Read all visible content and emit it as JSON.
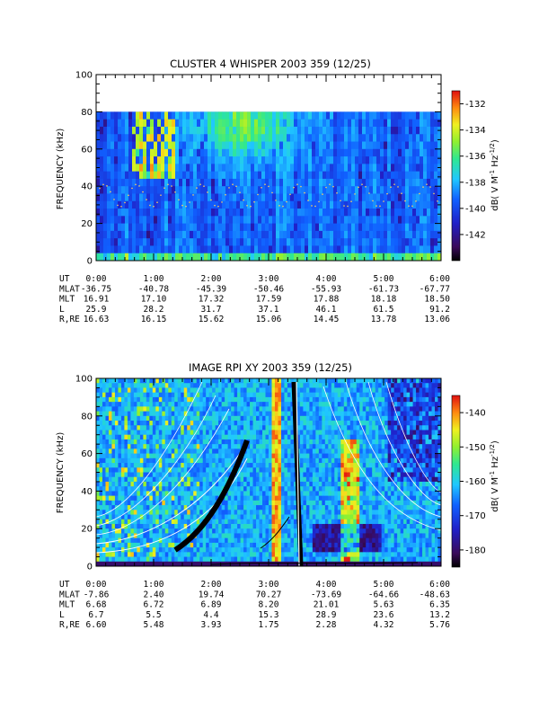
{
  "chart_data": [
    {
      "type": "heatmap",
      "title": "CLUSTER 4 WHISPER 2003 359 (12/25)",
      "ylabel": "FREQUENCY (kHz)",
      "ylim": [
        0,
        100
      ],
      "yticks": [
        0,
        20,
        40,
        60,
        80,
        100
      ],
      "xlim_hours": [
        0,
        6
      ],
      "data_frequency_max_khz": 80,
      "colorbar": {
        "label": "dB( V M⁻¹ Hz⁻¹ᐟ²)",
        "label_parts": [
          "dB( V M",
          "-1",
          " Hz",
          "-1/2",
          ")"
        ],
        "min": -144,
        "max": -131,
        "ticks": [
          -132,
          -134,
          -136,
          -138,
          -140,
          -142
        ]
      },
      "ephemeris": {
        "row_labels": [
          "UT",
          "MLAT",
          "MLT",
          "L",
          "R,RE"
        ],
        "UT": [
          "0:00",
          "1:00",
          "2:00",
          "3:00",
          "4:00",
          "5:00",
          "6:00"
        ],
        "MLAT": [
          "-36.75",
          "-40.78",
          "-45.39",
          "-50.46",
          "-55.93",
          "-61.73",
          "-67.77"
        ],
        "MLT": [
          "16.91",
          "17.10",
          "17.32",
          "17.59",
          "17.88",
          "18.18",
          "18.50"
        ],
        "L": [
          "25.9",
          "28.2",
          "31.7",
          "37.1",
          "46.1",
          "61.5",
          "91.2"
        ],
        "R,RE": [
          "16.63",
          "16.15",
          "15.62",
          "15.06",
          "14.45",
          "13.78",
          "13.06"
        ]
      }
    },
    {
      "type": "heatmap",
      "title": "IMAGE RPI XY 2003 359 (12/25)",
      "ylabel": "FREQUENCY (kHz)",
      "ylim": [
        0,
        100
      ],
      "yticks": [
        0,
        20,
        40,
        60,
        80,
        100
      ],
      "xlim_hours": [
        0,
        6
      ],
      "colorbar": {
        "label_parts": [
          "dB( V M",
          "-1",
          " Hz",
          "-1/2",
          ")"
        ],
        "min": -185,
        "max": -135,
        "ticks": [
          -140,
          -150,
          -160,
          -170,
          -180
        ]
      },
      "ephemeris": {
        "row_labels": [
          "UT",
          "MLAT",
          "MLT",
          "L",
          "R,RE"
        ],
        "UT": [
          "0:00",
          "1:00",
          "2:00",
          "3:00",
          "4:00",
          "5:00",
          "6:00"
        ],
        "MLAT": [
          "-7.86",
          "2.40",
          "19.74",
          "70.27",
          "-73.69",
          "-64.66",
          "-48.63"
        ],
        "MLT": [
          "6.68",
          "6.72",
          "6.89",
          "8.20",
          "21.01",
          "5.63",
          "6.35"
        ],
        "L": [
          "6.7",
          "5.5",
          "4.4",
          "15.3",
          "28.9",
          "23.6",
          "13.2"
        ],
        "R,RE": [
          "6.60",
          "5.48",
          "3.93",
          "1.75",
          "2.28",
          "4.32",
          "5.76"
        ]
      }
    }
  ]
}
